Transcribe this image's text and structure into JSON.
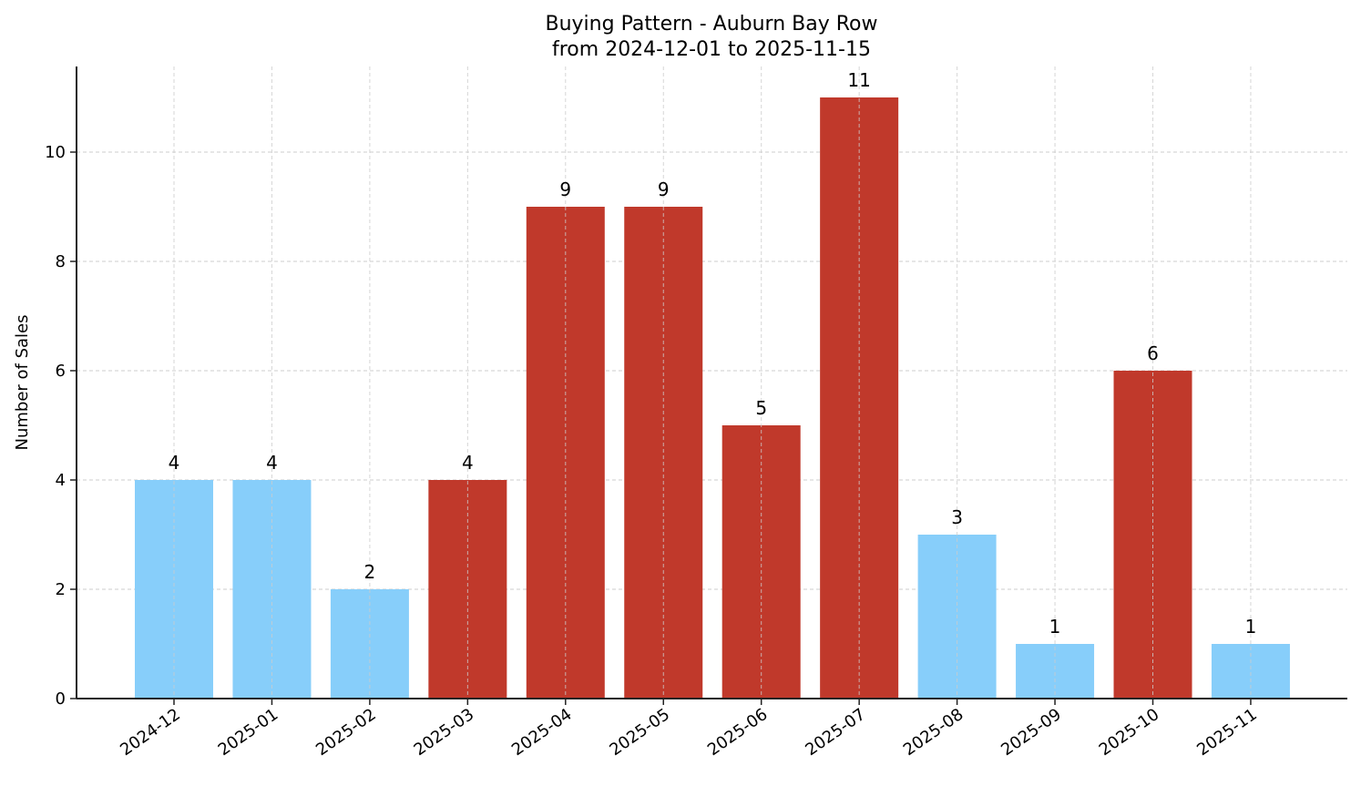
{
  "chart_data": {
    "type": "bar",
    "title": "Buying Pattern - Auburn Bay Row",
    "subtitle": "from 2024-12-01 to 2025-11-15",
    "xlabel": "",
    "ylabel": "Number of Sales",
    "categories": [
      "2024-12",
      "2025-01",
      "2025-02",
      "2025-03",
      "2025-04",
      "2025-05",
      "2025-06",
      "2025-07",
      "2025-08",
      "2025-09",
      "2025-10",
      "2025-11"
    ],
    "values": [
      4,
      4,
      2,
      4,
      9,
      9,
      5,
      11,
      3,
      1,
      6,
      1
    ],
    "bar_colors": [
      "#87CEFA",
      "#87CEFA",
      "#87CEFA",
      "#C0392B",
      "#C0392B",
      "#C0392B",
      "#C0392B",
      "#C0392B",
      "#87CEFA",
      "#87CEFA",
      "#C0392B",
      "#87CEFA"
    ],
    "color_legend": {
      "low": "#87CEFA",
      "high": "#C0392B"
    },
    "yticks": [
      0,
      2,
      4,
      6,
      8,
      10
    ],
    "ylim": [
      0,
      11.55
    ],
    "grid": true,
    "grid_style": "dashed",
    "legend": "none",
    "data_labels": true
  }
}
